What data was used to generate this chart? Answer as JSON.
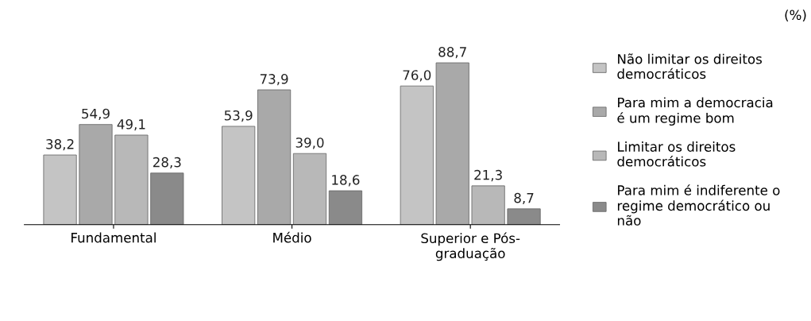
{
  "chart_data": {
    "type": "bar",
    "categories": [
      "Fundamental",
      "Médio",
      "Superior e Pós-\ngraduação"
    ],
    "series": [
      {
        "name": "Não limitar os direitos\ndemocráticos",
        "color": "#c4c4c4",
        "values": [
          38.2,
          53.9,
          76.0
        ],
        "value_labels": [
          "38,2",
          "53,9",
          "76,0"
        ]
      },
      {
        "name": "Para mim a democracia\né um regime bom",
        "color": "#a9a9a9",
        "values": [
          54.9,
          73.9,
          88.7
        ],
        "value_labels": [
          "54,9",
          "73,9",
          "88,7"
        ]
      },
      {
        "name": "Limitar os direitos\ndemocráticos",
        "color": "#b8b8b8",
        "values": [
          49.1,
          39.0,
          21.3
        ],
        "value_labels": [
          "49,1",
          "39,0",
          "21,3"
        ]
      },
      {
        "name": "Para mim é indiferente o\nregime democrático ou\nnão",
        "color": "#8a8a8a",
        "values": [
          28.3,
          18.6,
          8.7
        ],
        "value_labels": [
          "28,3",
          "18,6",
          "8,7"
        ]
      }
    ],
    "annotations": [
      "(%)"
    ],
    "legend": "right",
    "grid": false
  }
}
